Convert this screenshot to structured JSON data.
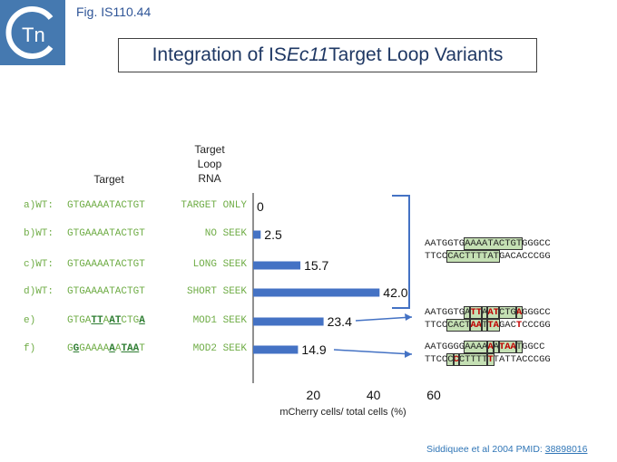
{
  "figure_label": "Fig. IS110.44",
  "title": {
    "pre": "Integration of IS",
    "italic": "Ec11",
    "post": " Target Loop Variants"
  },
  "logo": {
    "text": "Tn",
    "background": "#3a6ea5"
  },
  "headers": {
    "target": "Target",
    "target_loop_rna": [
      "Target",
      "Loop",
      "RNA"
    ]
  },
  "rows": [
    {
      "id": "a",
      "prefix": "a)WT:",
      "target_segments": [
        {
          "t": "GTGAAAATACTGT",
          "bold": false
        }
      ],
      "rna": "TARGET ONLY"
    },
    {
      "id": "b",
      "prefix": "b)WT:",
      "target_segments": [
        {
          "t": "GTGAAAATACTGT",
          "bold": false
        }
      ],
      "rna": "NO SEEK"
    },
    {
      "id": "c",
      "prefix": "c)WT:",
      "target_segments": [
        {
          "t": "GTGAAAATACTGT",
          "bold": false
        }
      ],
      "rna": "LONG SEEK"
    },
    {
      "id": "d",
      "prefix": "d)WT:",
      "target_segments": [
        {
          "t": "GTGAAAATACTGT",
          "bold": false
        }
      ],
      "rna": "SHORT SEEK"
    },
    {
      "id": "e",
      "prefix": "e)",
      "target_segments": [
        {
          "t": "GTGA",
          "bold": false
        },
        {
          "t": "TT",
          "bold": true
        },
        {
          "t": "A",
          "bold": false
        },
        {
          "t": "AT",
          "bold": true
        },
        {
          "t": "CTG",
          "bold": false
        },
        {
          "t": "A",
          "bold": true
        }
      ],
      "rna": "MOD1 SEEK"
    },
    {
      "id": "f",
      "prefix": "f)",
      "target_segments": [
        {
          "t": "G",
          "bold": false
        },
        {
          "t": "G",
          "bold": true
        },
        {
          "t": "GAAAA",
          "bold": false
        },
        {
          "t": "A",
          "bold": true
        },
        {
          "t": "A",
          "bold": false
        },
        {
          "t": "TAA",
          "bold": true
        },
        {
          "t": "T",
          "bold": false
        }
      ],
      "rna": "MOD2 SEEK"
    }
  ],
  "chart_data": {
    "type": "bar",
    "orientation": "horizontal",
    "categories": [
      "a",
      "b",
      "c",
      "d",
      "e",
      "f"
    ],
    "values": [
      0,
      2.5,
      15.7,
      42.0,
      23.4,
      14.9
    ],
    "value_labels": [
      "0",
      "2.5",
      "15.7",
      "42.0",
      "23.4",
      "14.9"
    ],
    "xlabel": "mCherry cells/ total cells (%)",
    "xticks": [
      20,
      40,
      60
    ],
    "xlim": [
      0,
      60
    ],
    "bar_color": "#4472c4",
    "grid": false
  },
  "sequences": [
    {
      "top": [
        {
          "t": "AATGGTG",
          "box": false,
          "red": false
        },
        {
          "t": "AAAATACTGT",
          "box": true,
          "red": false
        },
        {
          "t": "GGGCC",
          "box": false,
          "red": false
        }
      ],
      "bottom": [
        {
          "t": "TTCC",
          "box": false,
          "red": false
        },
        {
          "t": "CACTTTTAT",
          "box": true,
          "red": false
        },
        {
          "t": "GACACCCGG",
          "box": false,
          "red": false
        }
      ]
    },
    {
      "top": [
        {
          "t": "AATGGTG",
          "box": false,
          "red": false
        },
        {
          "t": "A",
          "box": true,
          "red": false
        },
        {
          "t": "TT",
          "box": true,
          "red": true
        },
        {
          "t": "A",
          "box": true,
          "red": false
        },
        {
          "t": "AT",
          "box": true,
          "red": true
        },
        {
          "t": "CTG",
          "box": true,
          "red": false
        },
        {
          "t": "A",
          "box": true,
          "red": true
        },
        {
          "t": "GGGCC",
          "box": false,
          "red": false
        }
      ],
      "bottom": [
        {
          "t": "TTCC",
          "box": false,
          "red": false
        },
        {
          "t": "CACT",
          "box": true,
          "red": false
        },
        {
          "t": "AA",
          "box": true,
          "red": true
        },
        {
          "t": "T",
          "box": true,
          "red": false
        },
        {
          "t": "TA",
          "box": true,
          "red": true
        },
        {
          "t": "GAC",
          "box": false,
          "red": false
        },
        {
          "t": "T",
          "box": false,
          "red": true
        },
        {
          "t": "CCCGG",
          "box": false,
          "red": false
        }
      ]
    },
    {
      "top": [
        {
          "t": "AATGGGG",
          "box": false,
          "red": false
        },
        {
          "t": "AAAA",
          "box": true,
          "red": false
        },
        {
          "t": "A",
          "box": true,
          "red": true
        },
        {
          "t": "A",
          "box": true,
          "red": false
        },
        {
          "t": "TAA",
          "box": true,
          "red": true
        },
        {
          "t": "T",
          "box": true,
          "red": false
        },
        {
          "t": "GGCC",
          "box": false,
          "red": false
        }
      ],
      "bottom": [
        {
          "t": "TTCC",
          "box": false,
          "red": false
        },
        {
          "t": "C",
          "box": true,
          "red": false
        },
        {
          "t": "C",
          "box": true,
          "red": true
        },
        {
          "t": "CTTTT",
          "box": true,
          "red": false
        },
        {
          "t": "T",
          "box": true,
          "red": true
        },
        {
          "t": "TATTACCCGG",
          "box": false,
          "red": false
        }
      ]
    }
  ],
  "citation": {
    "text": "Siddiquee et al 2004 PMID: ",
    "pmid": "38898016"
  }
}
